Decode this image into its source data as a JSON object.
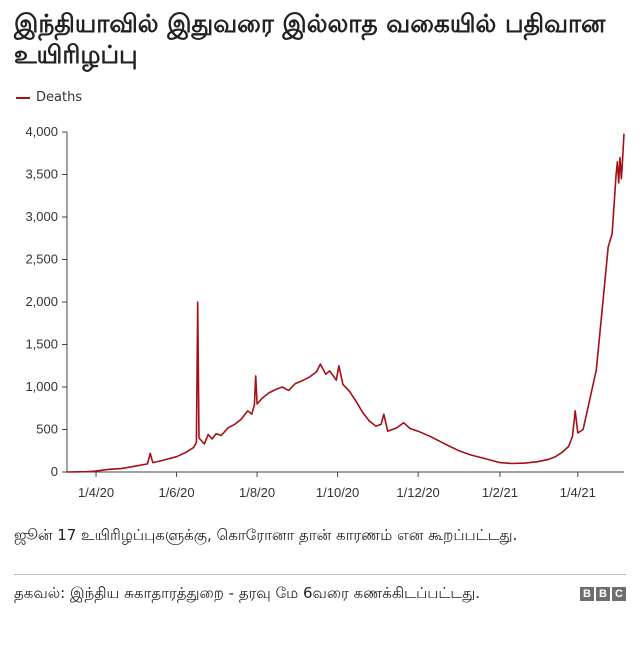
{
  "header": {
    "title": "இந்தியாவில் இதுவரை இல்லாத வகையில் பதிவான உயிரிழப்பு"
  },
  "footer": {
    "note": "ஜூன் 17 உயிரிழப்புகளுக்கு, கொரோனா தான் காரணம் என கூறப்பட்டது.",
    "source": "தகவல்: இந்திய சுகாதாரத்துறை - தரவு மே 6வரை கணக்கிடப்பட்டது.",
    "logo": [
      "B",
      "B",
      "C"
    ]
  },
  "colors": {
    "series": "#a50f15",
    "axis": "#444444",
    "text": "#333333"
  },
  "chart_data": {
    "type": "line",
    "title": "இந்தியாவில் இதுவரை இல்லாத வகையில் பதிவான உயிரிழப்பு",
    "xlabel": "",
    "ylabel": "",
    "ylim": [
      0,
      4000
    ],
    "yticks": [
      0,
      500,
      1000,
      1500,
      2000,
      2500,
      3000,
      3500,
      4000
    ],
    "ytick_labels": [
      "0",
      "500",
      "1,000",
      "1,500",
      "2,000",
      "2,500",
      "3,000",
      "3,500",
      "4,000"
    ],
    "xlim": [
      "2020-03-10",
      "2021-05-06"
    ],
    "xticks": [
      "2020-04-01",
      "2020-06-01",
      "2020-08-01",
      "2020-10-01",
      "2020-12-01",
      "2021-02-01",
      "2021-04-01"
    ],
    "xtick_labels": [
      "1/4/20",
      "1/6/20",
      "1/8/20",
      "1/10/20",
      "1/12/20",
      "1/2/21",
      "1/4/21"
    ],
    "grid": false,
    "legend": "top-left",
    "series": [
      {
        "name": "Deaths",
        "color": "#a50f15",
        "points": [
          [
            "2020-03-10",
            0
          ],
          [
            "2020-03-25",
            3
          ],
          [
            "2020-04-01",
            10
          ],
          [
            "2020-04-10",
            30
          ],
          [
            "2020-04-20",
            40
          ],
          [
            "2020-05-01",
            70
          ],
          [
            "2020-05-10",
            95
          ],
          [
            "2020-05-12",
            220
          ],
          [
            "2020-05-14",
            110
          ],
          [
            "2020-05-20",
            130
          ],
          [
            "2020-06-01",
            180
          ],
          [
            "2020-06-08",
            230
          ],
          [
            "2020-06-14",
            290
          ],
          [
            "2020-06-16",
            350
          ],
          [
            "2020-06-17",
            2000
          ],
          [
            "2020-06-18",
            400
          ],
          [
            "2020-06-22",
            330
          ],
          [
            "2020-06-25",
            440
          ],
          [
            "2020-06-28",
            390
          ],
          [
            "2020-07-01",
            450
          ],
          [
            "2020-07-05",
            430
          ],
          [
            "2020-07-10",
            520
          ],
          [
            "2020-07-15",
            560
          ],
          [
            "2020-07-20",
            620
          ],
          [
            "2020-07-25",
            720
          ],
          [
            "2020-07-28",
            680
          ],
          [
            "2020-07-30",
            790
          ],
          [
            "2020-07-31",
            1130
          ],
          [
            "2020-08-01",
            800
          ],
          [
            "2020-08-05",
            870
          ],
          [
            "2020-08-10",
            930
          ],
          [
            "2020-08-15",
            970
          ],
          [
            "2020-08-20",
            1000
          ],
          [
            "2020-08-25",
            960
          ],
          [
            "2020-08-30",
            1040
          ],
          [
            "2020-09-05",
            1080
          ],
          [
            "2020-09-10",
            1120
          ],
          [
            "2020-09-15",
            1180
          ],
          [
            "2020-09-18",
            1270
          ],
          [
            "2020-09-22",
            1150
          ],
          [
            "2020-09-25",
            1190
          ],
          [
            "2020-09-30",
            1080
          ],
          [
            "2020-10-02",
            1250
          ],
          [
            "2020-10-05",
            1030
          ],
          [
            "2020-10-10",
            950
          ],
          [
            "2020-10-15",
            830
          ],
          [
            "2020-10-20",
            700
          ],
          [
            "2020-10-25",
            600
          ],
          [
            "2020-10-30",
            540
          ],
          [
            "2020-11-03",
            560
          ],
          [
            "2020-11-05",
            680
          ],
          [
            "2020-11-08",
            480
          ],
          [
            "2020-11-15",
            520
          ],
          [
            "2020-11-20",
            580
          ],
          [
            "2020-11-25",
            510
          ],
          [
            "2020-12-01",
            480
          ],
          [
            "2020-12-10",
            420
          ],
          [
            "2020-12-20",
            340
          ],
          [
            "2021-01-01",
            250
          ],
          [
            "2021-01-10",
            200
          ],
          [
            "2021-01-20",
            160
          ],
          [
            "2021-02-01",
            110
          ],
          [
            "2021-02-10",
            100
          ],
          [
            "2021-02-20",
            105
          ],
          [
            "2021-03-01",
            120
          ],
          [
            "2021-03-10",
            150
          ],
          [
            "2021-03-15",
            180
          ],
          [
            "2021-03-20",
            230
          ],
          [
            "2021-03-25",
            300
          ],
          [
            "2021-03-28",
            420
          ],
          [
            "2021-03-30",
            720
          ],
          [
            "2021-04-01",
            460
          ],
          [
            "2021-04-05",
            500
          ],
          [
            "2021-04-10",
            850
          ],
          [
            "2021-04-15",
            1200
          ],
          [
            "2021-04-20",
            2000
          ],
          [
            "2021-04-24",
            2650
          ],
          [
            "2021-04-27",
            2800
          ],
          [
            "2021-04-30",
            3500
          ],
          [
            "2021-05-01",
            3650
          ],
          [
            "2021-05-02",
            3400
          ],
          [
            "2021-05-03",
            3700
          ],
          [
            "2021-05-04",
            3450
          ],
          [
            "2021-05-05",
            3700
          ],
          [
            "2021-05-06",
            3980
          ]
        ]
      }
    ]
  }
}
